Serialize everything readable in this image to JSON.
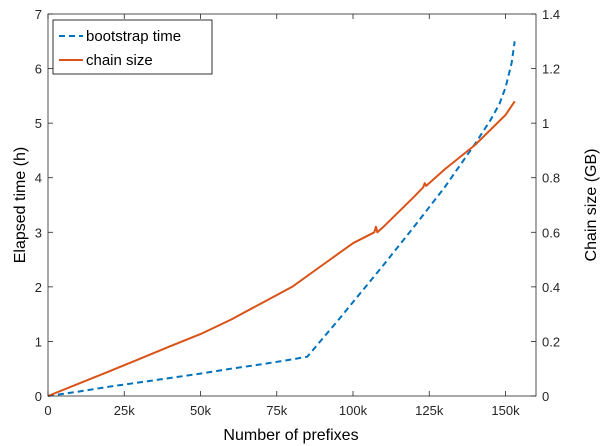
{
  "chart_data": {
    "type": "line",
    "xlabel": "Number of prefixes",
    "ylabel_left": "Elapsed time (h)",
    "ylabel_right": "Chain size (GB)",
    "xlim": [
      0,
      160000
    ],
    "ylim_left": [
      0,
      7
    ],
    "ylim_right": [
      0,
      1.4
    ],
    "x_ticks": [
      0,
      25000,
      50000,
      75000,
      100000,
      125000,
      150000
    ],
    "x_tick_labels": [
      "0",
      "25k",
      "50k",
      "75k",
      "100k",
      "125k",
      "150k"
    ],
    "y_left_ticks": [
      0,
      1,
      2,
      3,
      4,
      5,
      6,
      7
    ],
    "y_left_tick_labels": [
      "0",
      "1",
      "2",
      "3",
      "4",
      "5",
      "6",
      "7"
    ],
    "y_right_ticks": [
      0,
      0.2,
      0.4,
      0.6,
      0.8,
      1.0,
      1.2,
      1.4
    ],
    "y_right_tick_labels": [
      "0",
      "0.2",
      "0.4",
      "0.6",
      "0.8",
      "1",
      "1.2",
      "1.4"
    ],
    "grid": false,
    "legend_position": "top-left",
    "series": [
      {
        "name": "bootstrap time",
        "axis": "left",
        "style": "dashed",
        "color": "#0072BD",
        "x": [
          0,
          10000,
          20000,
          30000,
          40000,
          50000,
          60000,
          70000,
          80000,
          85000,
          90000,
          95000,
          100000,
          110000,
          120000,
          130000,
          140000,
          145000,
          148000,
          150000,
          152000,
          153000
        ],
        "y": [
          0,
          0.08,
          0.17,
          0.25,
          0.33,
          0.41,
          0.5,
          0.58,
          0.67,
          0.72,
          1.05,
          1.38,
          1.72,
          2.4,
          3.1,
          3.82,
          4.62,
          5.05,
          5.35,
          5.65,
          6.1,
          6.5
        ]
      },
      {
        "name": "chain size",
        "axis": "right",
        "style": "solid",
        "color": "#D95319",
        "x": [
          0,
          10000,
          20000,
          30000,
          40000,
          50000,
          60000,
          70000,
          80000,
          90000,
          100000,
          107000,
          107500,
          108000,
          110000,
          120000,
          123000,
          123500,
          124000,
          130000,
          140000,
          150000,
          153000
        ],
        "y": [
          0,
          0.045,
          0.09,
          0.136,
          0.182,
          0.227,
          0.28,
          0.34,
          0.4,
          0.48,
          0.56,
          0.6,
          0.62,
          0.6,
          0.62,
          0.73,
          0.765,
          0.78,
          0.77,
          0.83,
          0.92,
          1.03,
          1.08
        ]
      }
    ]
  }
}
